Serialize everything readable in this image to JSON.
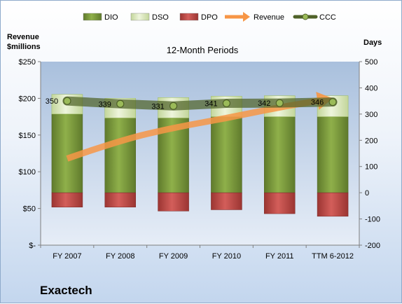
{
  "company": "Exactech",
  "chart_data": {
    "type": "bar",
    "title": "12-Month Periods",
    "categories": [
      "FY 2007",
      "FY 2008",
      "FY 2009",
      "FY 2010",
      "FY 2011",
      "TTM 6-2012"
    ],
    "left_axis": {
      "label_line1": "Revenue",
      "label_line2": "$millions",
      "range": [
        0,
        250
      ],
      "ticks": [
        0,
        50,
        100,
        150,
        200,
        250
      ],
      "tick_labels": [
        "$-",
        "$50",
        "$100",
        "$150",
        "$200",
        "$250"
      ]
    },
    "right_axis": {
      "label": "Days",
      "range": [
        -200,
        500
      ],
      "ticks": [
        -200,
        -100,
        0,
        100,
        200,
        300,
        400,
        500
      ],
      "tick_labels": [
        "-200",
        "-100",
        "0",
        "100",
        "200",
        "300",
        "400",
        "500"
      ]
    },
    "grid": false,
    "legend": {
      "placement": "top",
      "items": [
        {
          "name": "DIO",
          "color": "#77933c",
          "kind": "bar"
        },
        {
          "name": "DSO",
          "color": "#d7e4bd",
          "kind": "bar"
        },
        {
          "name": "DPO",
          "color": "#c0504d",
          "kind": "bar"
        },
        {
          "name": "Revenue",
          "color": "#f79646",
          "kind": "arrow"
        },
        {
          "name": "CCC",
          "color": "#4f6228",
          "kind": "line"
        }
      ]
    },
    "series": [
      {
        "name": "DIO",
        "axis": "right",
        "values": [
          300,
          285,
          285,
          290,
          290,
          290
        ]
      },
      {
        "name": "DSO",
        "axis": "right",
        "values": [
          75,
          75,
          78,
          78,
          80,
          80
        ]
      },
      {
        "name": "DPO",
        "axis": "right",
        "values": [
          -55,
          -55,
          -70,
          -65,
          -80,
          -90
        ]
      },
      {
        "name": "Revenue",
        "axis": "left",
        "values": [
          118,
          143,
          160,
          173,
          188,
          200
        ]
      },
      {
        "name": "CCC",
        "axis": "right",
        "values": [
          350,
          339,
          331,
          341,
          342,
          346
        ],
        "labels": [
          "350",
          "339",
          "331",
          "341",
          "342",
          "346"
        ]
      }
    ]
  }
}
